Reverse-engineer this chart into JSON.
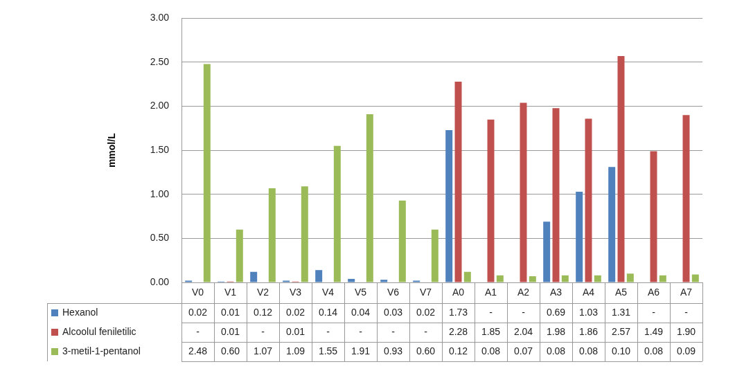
{
  "chart_data": {
    "type": "bar",
    "ylabel": "mmol/L",
    "categories": [
      "V0",
      "V1",
      "V2",
      "V3",
      "V4",
      "V5",
      "V6",
      "V7",
      "A0",
      "A1",
      "A2",
      "A3",
      "A4",
      "A5",
      "A6",
      "A7"
    ],
    "series": [
      {
        "name": "Hexanol",
        "color": "#4f81bd",
        "values": [
          0.02,
          0.01,
          0.12,
          0.02,
          0.14,
          0.04,
          0.03,
          0.02,
          1.73,
          null,
          null,
          0.69,
          1.03,
          1.31,
          null,
          null
        ],
        "value_labels": [
          "0.02",
          "0.01",
          "0.12",
          "0.02",
          "0.14",
          "0.04",
          "0.03",
          "0.02",
          "1.73",
          "-",
          "-",
          "0.69",
          "1.03",
          "1.31",
          "-",
          "-"
        ]
      },
      {
        "name": "Alcoolul feniletilic",
        "color": "#c0504d",
        "values": [
          null,
          0.01,
          null,
          0.01,
          null,
          null,
          null,
          null,
          2.28,
          1.85,
          2.04,
          1.98,
          1.86,
          2.57,
          1.49,
          1.9
        ],
        "value_labels": [
          "-",
          "0.01",
          "-",
          "0.01",
          "-",
          "-",
          "-",
          "-",
          "2.28",
          "1.85",
          "2.04",
          "1.98",
          "1.86",
          "2.57",
          "1.49",
          "1.90"
        ]
      },
      {
        "name": "3-metil-1-pentanol",
        "color": "#9bbb59",
        "values": [
          2.48,
          0.6,
          1.07,
          1.09,
          1.55,
          1.91,
          0.93,
          0.6,
          0.12,
          0.08,
          0.07,
          0.08,
          0.08,
          0.1,
          0.08,
          0.09
        ],
        "value_labels": [
          "2.48",
          "0.60",
          "1.07",
          "1.09",
          "1.55",
          "1.91",
          "0.93",
          "0.60",
          "0.12",
          "0.08",
          "0.07",
          "0.08",
          "0.08",
          "0.10",
          "0.08",
          "0.09"
        ]
      }
    ],
    "ylim": [
      0,
      3
    ],
    "yticks": [
      {
        "value": 0,
        "label": "0.00"
      },
      {
        "value": 0.5,
        "label": "0.50"
      },
      {
        "value": 1,
        "label": "1.00"
      },
      {
        "value": 1.5,
        "label": "1.50"
      },
      {
        "value": 2,
        "label": "2.00"
      },
      {
        "value": 2.5,
        "label": "2.50"
      },
      {
        "value": 3,
        "label": "3.00"
      }
    ],
    "grid": "y",
    "legend": "bottom"
  }
}
